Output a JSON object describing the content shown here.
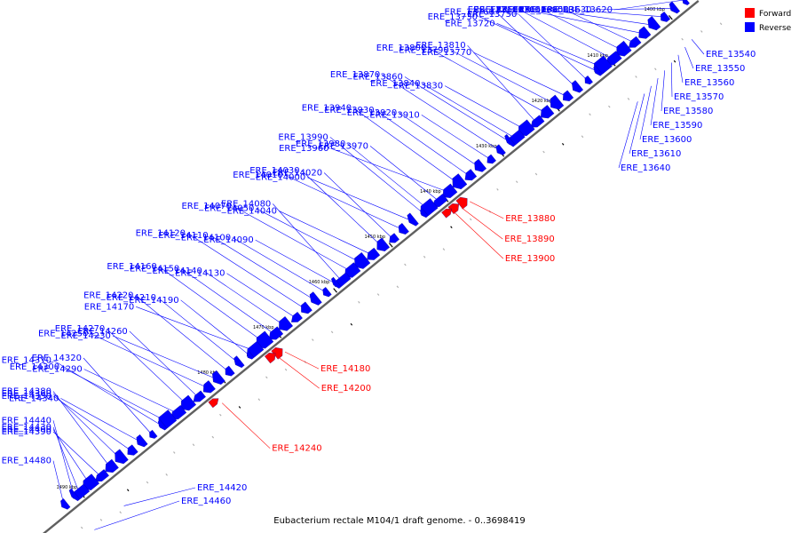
{
  "title": "Eubacterium rectale M104/1 draft genome. - 0..3698419",
  "legend": [
    {
      "label": "Forward",
      "color": "#ff0000"
    },
    {
      "label": "Reverse",
      "color": "#0000ff"
    }
  ],
  "colors": {
    "forward": "#ff0000",
    "reverse": "#0000ff",
    "backbone": "#606060"
  },
  "kbp_marks": [
    "1400 kbp",
    "1410 kbp",
    "1420 kbp",
    "1430 kbp",
    "1440 kbp",
    "1450 kbp",
    "1460 kbp",
    "1470 kbp",
    "1480 kbp",
    "1490 kbp"
  ],
  "reverse_genes": [
    "ERE_13620",
    "ERE_13630",
    "ERE_13650",
    "ERE_13660",
    "ERE_13680",
    "ERE_13690",
    "ERE_13700",
    "ERE_13710",
    "ERE_13720",
    "ERE_13730",
    "ERE_13750",
    "ERE_13760",
    "ERE_13770",
    "ERE_13790",
    "ERE_13800",
    "ERE_13810",
    "ERE_13830",
    "ERE_13840",
    "ERE_13860",
    "ERE_13870",
    "ERE_13910",
    "ERE_13920",
    "ERE_13930",
    "ERE_13940",
    "ERE_13960",
    "ERE_13970",
    "ERE_13980",
    "ERE_13990",
    "ERE_14000",
    "ERE_14010",
    "ERE_14020",
    "ERE_14030",
    "ERE_14040",
    "ERE_14050",
    "ERE_14070",
    "ERE_14080",
    "ERE_14090",
    "ERE_14100",
    "ERE_14110",
    "ERE_14120",
    "ERE_14130",
    "ERE_14140",
    "ERE_14150",
    "ERE_14160",
    "ERE_14170",
    "ERE_14190",
    "ERE_14210",
    "ERE_14220",
    "ERE_14230",
    "ERE_14250",
    "ERE_14260",
    "ERE_14270",
    "ERE_14290",
    "ERE_14300",
    "ERE_14310",
    "ERE_14320",
    "ERE_14340",
    "ERE_14350",
    "ERE_14360",
    "ERE_14380",
    "ERE_14390",
    "ERE_14400",
    "ERE_14430",
    "ERE_14440",
    "ERE_14480"
  ],
  "forward_genes": [
    "ERE_13880",
    "ERE_13890",
    "ERE_13900",
    "ERE_14180",
    "ERE_14200",
    "ERE_14240"
  ],
  "outer_genes_right": [
    "ERE_13540",
    "ERE_13550",
    "ERE_13560",
    "ERE_13570",
    "ERE_13580",
    "ERE_13590",
    "ERE_13600",
    "ERE_13610",
    "ERE_13640"
  ],
  "outer_genes_bottom": [
    "ERE_14420",
    "ERE_14460"
  ]
}
